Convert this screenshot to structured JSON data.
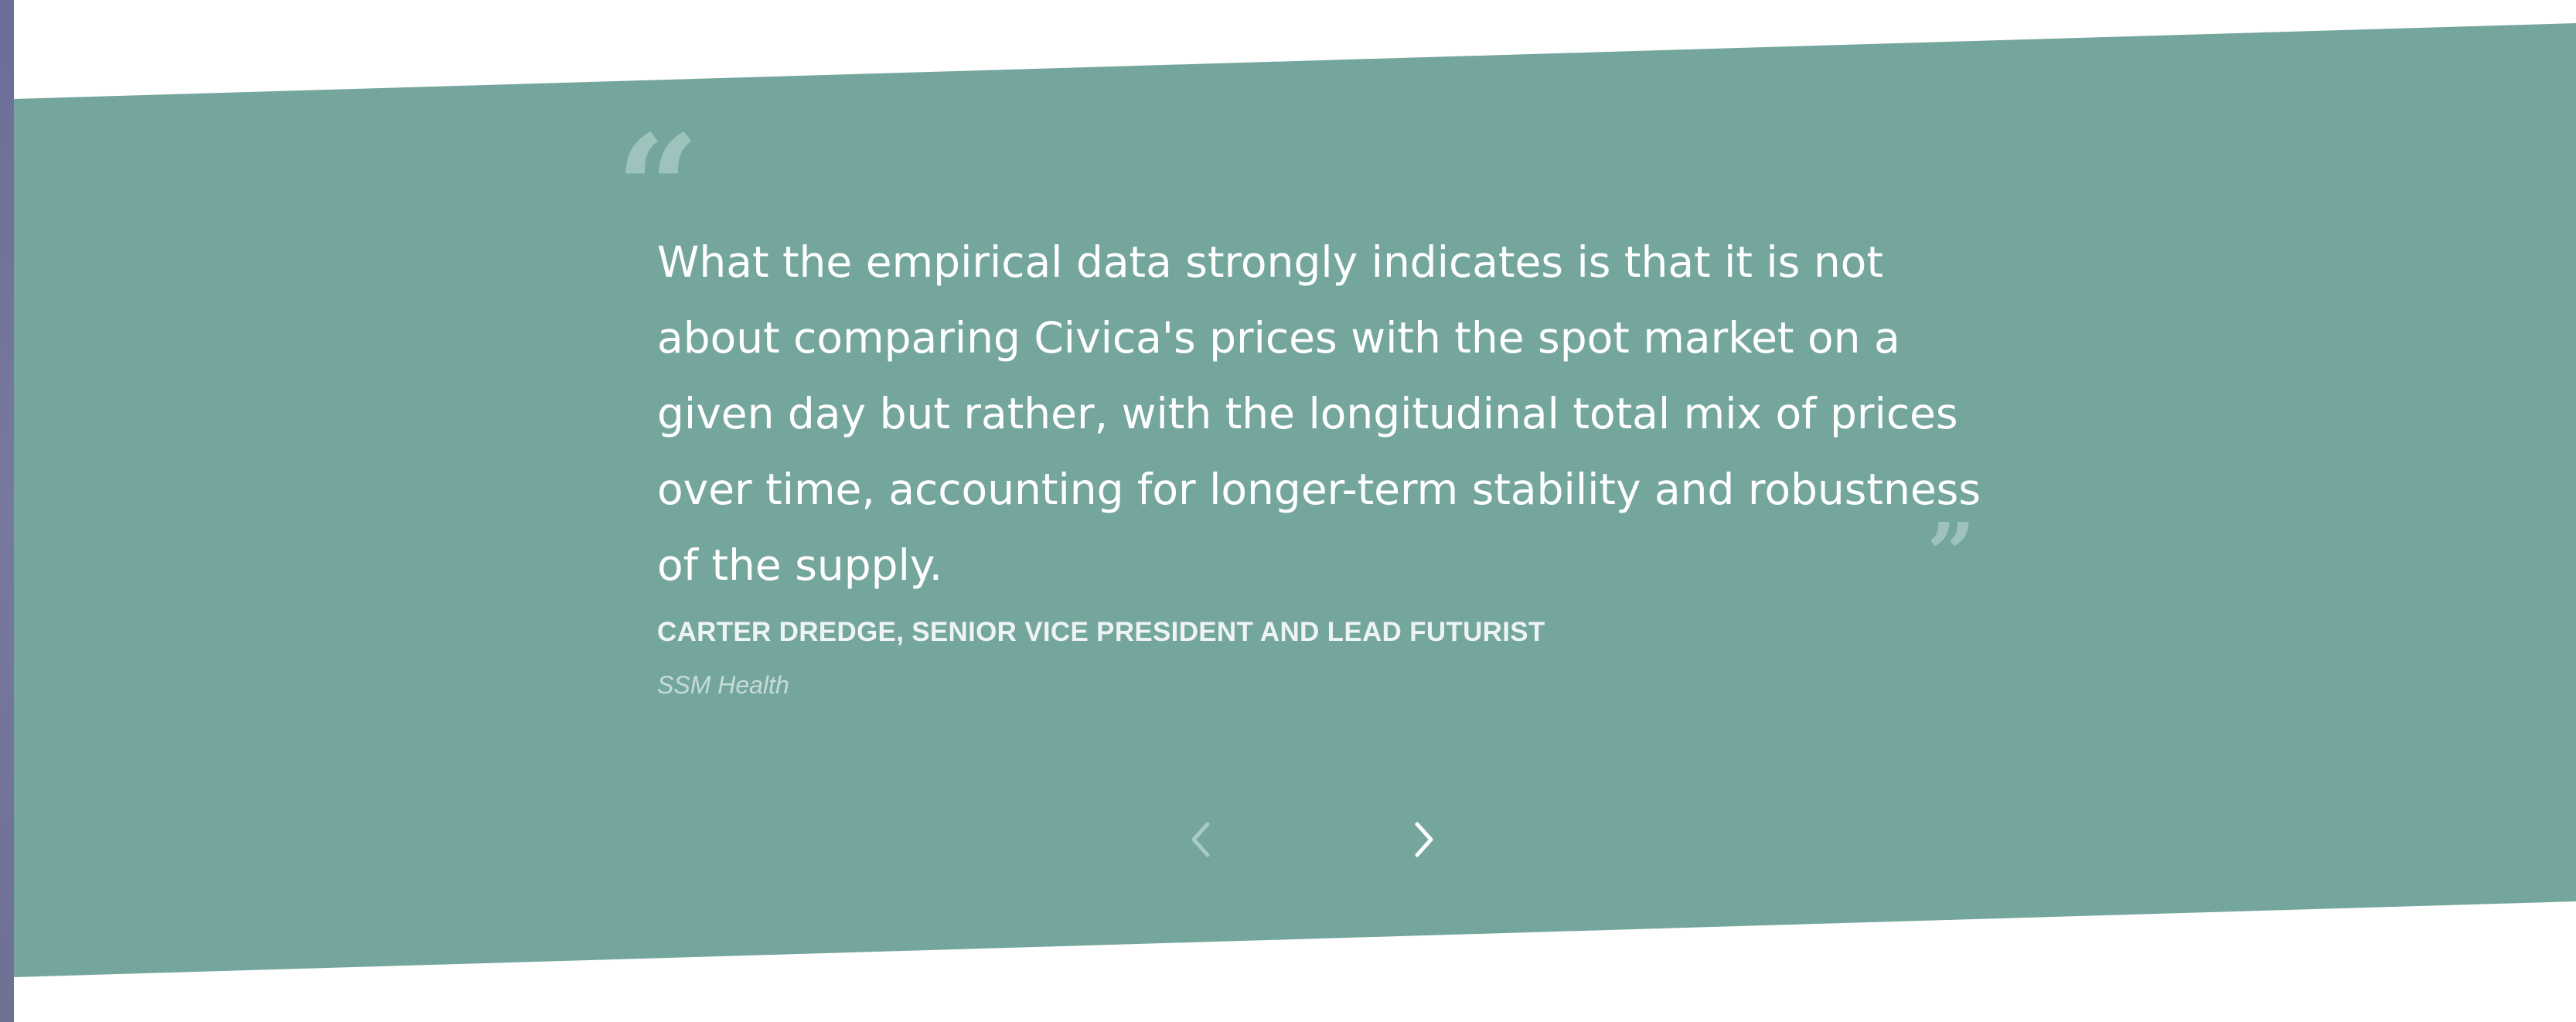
{
  "testimonial": {
    "open_quote_mark": "“",
    "close_quote_mark": "”",
    "quote": "What the empirical data strongly indicates is that it is not about comparing Civica's prices with the spot market on a given day but rather, with the longitudinal total mix of prices over time, accounting for longer-term stability and robustness of the supply.",
    "author": "CARTER DREDGE, SENIOR VICE PRESIDENT AND LEAD FUTURIST",
    "organization": "SSM Health"
  },
  "carousel": {
    "prev_icon": "chevron-left-icon",
    "next_icon": "chevron-right-icon",
    "prev_enabled": false,
    "next_enabled": true
  },
  "colors": {
    "band": "#74a69e",
    "quote_mark": "#9ec2bc",
    "text": "#ffffff",
    "nav_disabled": "#a9cbc5",
    "nav_enabled": "#ffffff"
  }
}
